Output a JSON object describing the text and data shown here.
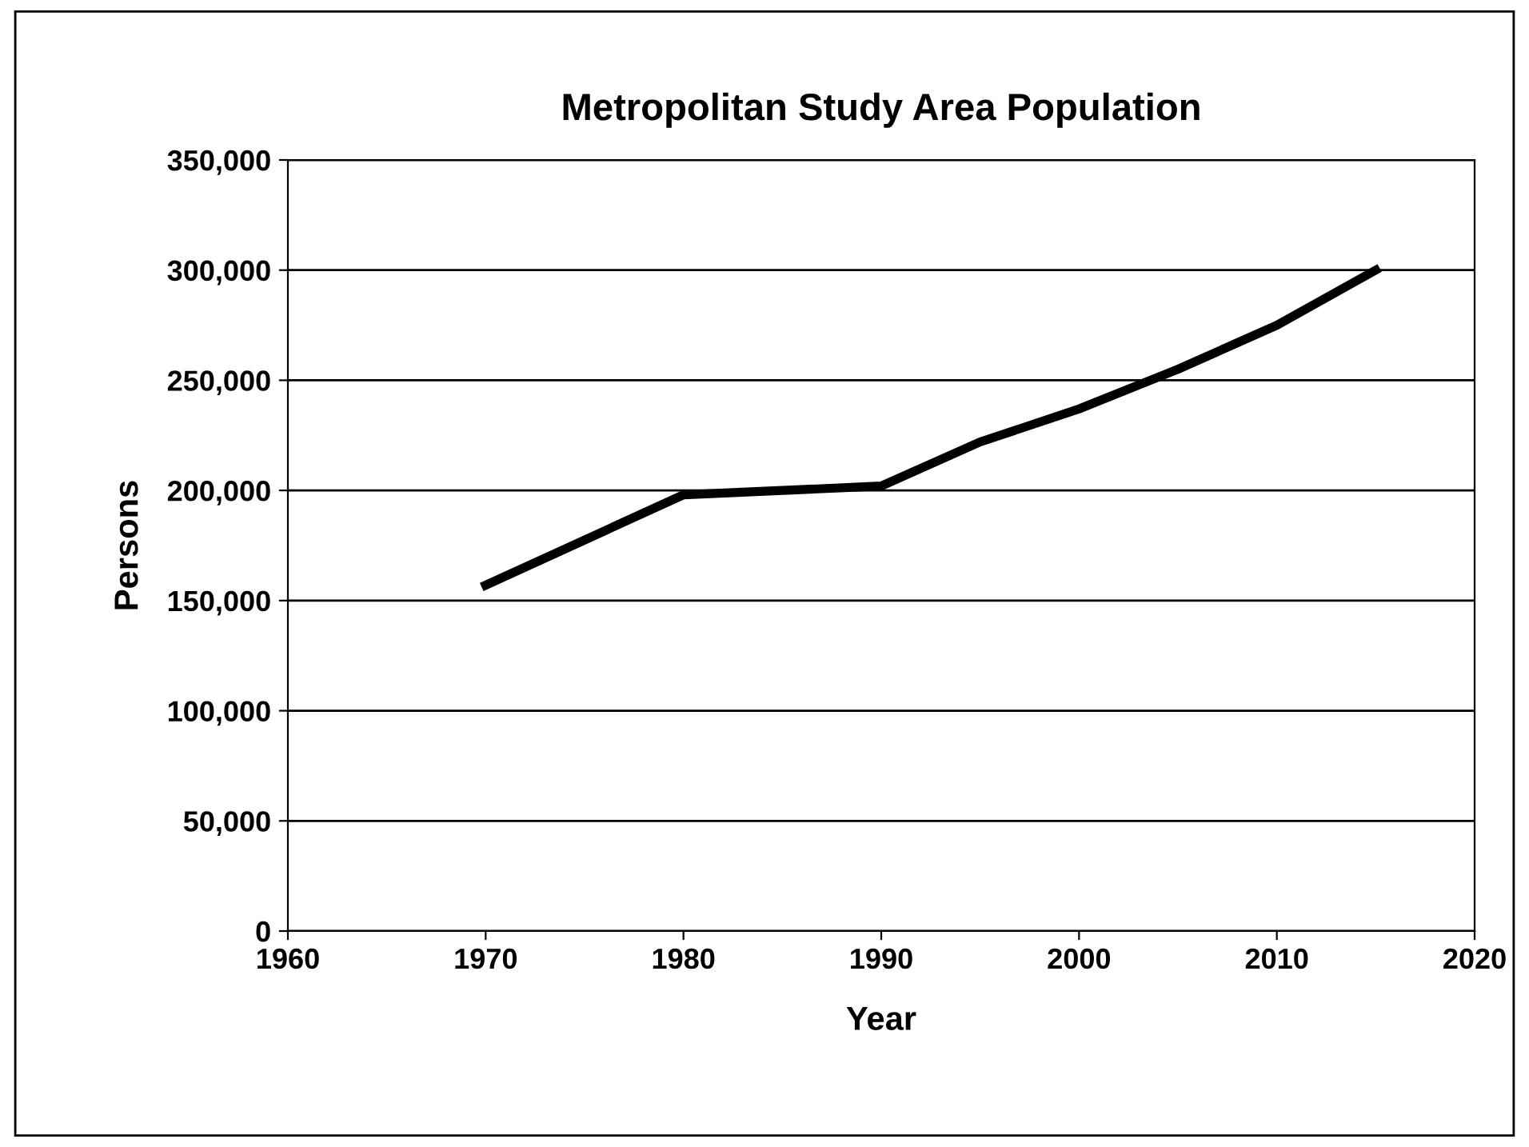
{
  "chart_data": {
    "type": "line",
    "title": "Metropolitan Study Area Population",
    "xlabel": "Year",
    "ylabel": "Persons",
    "x": [
      1970,
      1980,
      1990,
      1995,
      2000,
      2005,
      2010,
      2015
    ],
    "series": [
      {
        "color": "#000000",
        "values": [
          157000,
          198000,
          202000,
          222000,
          237000,
          255000,
          275000,
          300000
        ]
      }
    ],
    "xlim": [
      1960,
      2020
    ],
    "xticks": [
      1960,
      1970,
      1980,
      1990,
      2000,
      2010,
      2020
    ],
    "ylim": [
      0,
      350000
    ],
    "yticks": [
      {
        "value": 0,
        "label": "0"
      },
      {
        "value": 50000,
        "label": "50,000"
      },
      {
        "value": 100000,
        "label": "100,000"
      },
      {
        "value": 150000,
        "label": "150,000"
      },
      {
        "value": 200000,
        "label": "200,000"
      },
      {
        "value": 250000,
        "label": "250,000"
      },
      {
        "value": 300000,
        "label": "300,000"
      },
      {
        "value": 350000,
        "label": "350,000"
      }
    ],
    "grid": "y",
    "legend": false,
    "marker": "none",
    "line_style": "solid"
  }
}
